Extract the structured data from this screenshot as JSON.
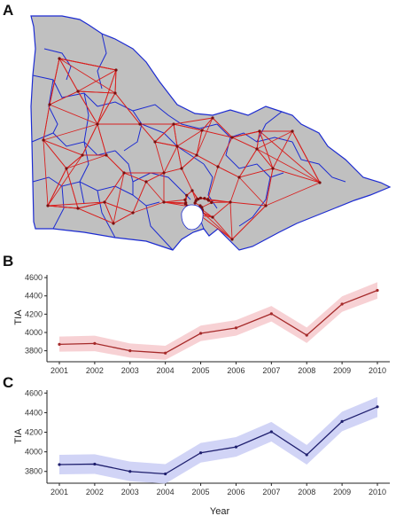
{
  "panel_labels": {
    "a": "A",
    "b": "B",
    "c": "C"
  },
  "colors": {
    "land": "#c0c0c0",
    "border": "#1c2bd1",
    "network": "#d8201f",
    "node": "#7a1010",
    "b_line": "#a52a2a",
    "b_band": "#f6c9cc",
    "c_line": "#1f1f6e",
    "c_band": "#c9ccf4"
  },
  "chart_data": [
    {
      "type": "line",
      "panel": "B",
      "x": [
        "2001",
        "2002",
        "2003",
        "2004",
        "2005",
        "2006",
        "2007",
        "2008",
        "2009",
        "2010"
      ],
      "series": [
        {
          "values": [
            3870,
            3880,
            3800,
            3775,
            3990,
            4050,
            4205,
            3970,
            4310,
            4460
          ],
          "lower": [
            3790,
            3795,
            3725,
            3700,
            3905,
            3965,
            4120,
            3885,
            4225,
            4370
          ],
          "upper": [
            3955,
            3965,
            3880,
            3855,
            4075,
            4135,
            4290,
            4055,
            4395,
            4550
          ]
        }
      ],
      "xlabel": "",
      "ylabel": "TIA",
      "yticks": [
        3800,
        4000,
        4200,
        4400,
        4600
      ],
      "ylim": [
        3680,
        4630
      ]
    },
    {
      "type": "line",
      "panel": "C",
      "x": [
        "2001",
        "2002",
        "2003",
        "2004",
        "2005",
        "2006",
        "2007",
        "2008",
        "2009",
        "2010"
      ],
      "series": [
        {
          "values": [
            3870,
            3875,
            3800,
            3775,
            3990,
            4050,
            4205,
            3970,
            4310,
            4460
          ],
          "lower": [
            3770,
            3775,
            3700,
            3675,
            3890,
            3950,
            4105,
            3870,
            4210,
            4355
          ],
          "upper": [
            3970,
            3975,
            3900,
            3875,
            4090,
            4150,
            4305,
            4070,
            4410,
            4560
          ]
        }
      ],
      "xlabel": "Year",
      "ylabel": "TIA",
      "yticks": [
        3800,
        4000,
        4200,
        4400,
        4600
      ],
      "ylim": [
        3680,
        4630
      ]
    }
  ]
}
